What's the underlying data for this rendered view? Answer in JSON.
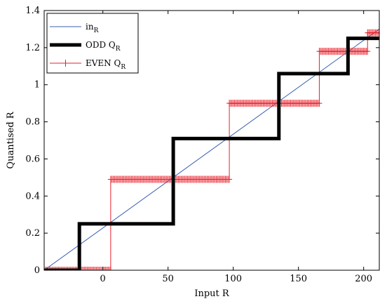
{
  "chart_data": {
    "type": "line",
    "title": "",
    "xlabel": "Input R",
    "ylabel": "Quantised R",
    "xlim": [
      -45,
      212
    ],
    "ylim": [
      0,
      1.4
    ],
    "xticks": [
      0,
      50,
      100,
      150,
      200
    ],
    "yticks": [
      0,
      0.2,
      0.4,
      0.6,
      0.8,
      1,
      1.2,
      1.4
    ],
    "xtick_labels": [
      "0",
      "50",
      "100",
      "150",
      "200"
    ],
    "ytick_labels": [
      "0",
      "0.2",
      "0.4",
      "0.6",
      "0.8",
      "1",
      "1.2",
      "1.4"
    ],
    "grid": false,
    "legend_position": "top-left",
    "series": [
      {
        "name": "in",
        "name_subscript": "R",
        "style": "thin-line",
        "color": "#3a5fb5",
        "x": [
          -45,
          212
        ],
        "y": [
          0,
          1.3
        ]
      },
      {
        "name": "ODD Q",
        "name_subscript": "R",
        "style": "thick-step",
        "color": "#000000",
        "x": [
          -45,
          -18,
          -18,
          54,
          54,
          135,
          135,
          188,
          188,
          212
        ],
        "y": [
          0,
          0,
          0.25,
          0.25,
          0.71,
          0.71,
          1.06,
          1.06,
          1.25,
          1.25
        ]
      },
      {
        "name": "EVEN Q",
        "name_subscript": "R",
        "style": "step-with-plus-markers",
        "color": "#e8202a",
        "x": [
          -45,
          6,
          6,
          97,
          97,
          166,
          166,
          203,
          203,
          212
        ],
        "y": [
          0,
          0,
          0.49,
          0.49,
          0.9,
          0.9,
          1.18,
          1.18,
          1.28,
          1.28
        ]
      }
    ]
  }
}
